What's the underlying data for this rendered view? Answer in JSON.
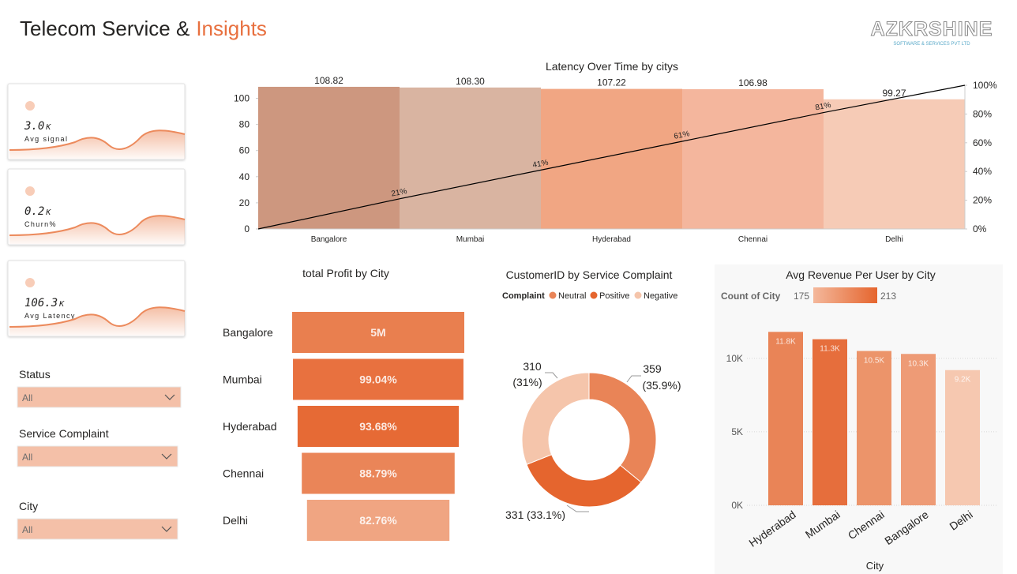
{
  "header": {
    "title": "Telecom Service &",
    "title_accent": "Insights",
    "logo": "AZKRSHINE",
    "logo_tagline": "SOFTWARE & SERVICES PVT LTD"
  },
  "kpis": [
    {
      "value": "3.0",
      "unit": "K",
      "label": "Avg signal"
    },
    {
      "value": "0.2",
      "unit": "K",
      "label": "Churn%"
    },
    {
      "value": "106.3",
      "unit": "K",
      "label": "Avg Latency"
    }
  ],
  "filters": [
    {
      "label": "Status",
      "value": "All"
    },
    {
      "label": "Service Complaint",
      "value": "All"
    },
    {
      "label": "City",
      "value": "All"
    }
  ],
  "chart_data": [
    {
      "type": "pareto",
      "title": "Latency Over Time by citys",
      "categories": [
        "Bangalore",
        "Mumbai",
        "Hyderabad",
        "Chennai",
        "Delhi"
      ],
      "values": [
        108.82,
        108.3,
        107.22,
        106.98,
        99.27
      ],
      "value_labels": [
        "108.82",
        "108.30",
        "107.22",
        "106.98",
        "99.27"
      ],
      "colors": [
        "#cd977f",
        "#d9b4a1",
        "#f1a683",
        "#f4b69d",
        "#f6cbb6"
      ],
      "ylim": [
        0,
        110
      ],
      "yticks": [
        0,
        20,
        40,
        60,
        80,
        100
      ],
      "line": {
        "values": [
          21,
          41,
          61,
          81,
          100
        ],
        "value_labels": [
          "21%",
          "41%",
          "61%",
          "81%",
          null
        ],
        "color": "#000000",
        "axis": "y2"
      },
      "y2lim": [
        0,
        100
      ],
      "y2ticks": [
        {
          "value": 0,
          "label": "0%"
        },
        {
          "value": 20,
          "label": "20%"
        },
        {
          "value": 40,
          "label": "40%"
        },
        {
          "value": 60,
          "label": "60%"
        },
        {
          "value": 80,
          "label": "80%"
        },
        {
          "value": 100,
          "label": "100%"
        }
      ]
    },
    {
      "type": "funnel",
      "title": "total Profit by City",
      "categories": [
        "Bangalore",
        "Mumbai",
        "Hyderabad",
        "Chennai",
        "Delhi"
      ],
      "top_value": 5000000,
      "top_value_label": "5M",
      "percent_of_top": [
        99.04,
        93.68,
        88.79,
        82.76
      ],
      "percent_labels": [
        "99.04%",
        "93.68%",
        "88.79%",
        "82.76%"
      ],
      "colors": [
        "#e97f4f",
        "#e8713f",
        "#e66a35",
        "#ea8558",
        "#f0a582"
      ]
    },
    {
      "type": "donut",
      "title": "CustomerID by Service Complaint",
      "legend_title": "Complaint",
      "legend": "top-left",
      "categories": [
        "Neutral",
        "Positive",
        "Negative"
      ],
      "values": [
        359,
        331,
        310
      ],
      "percents": [
        35.9,
        33.1,
        31
      ],
      "percent_labels": [
        "(35.9%)",
        "(33.1%)",
        "(31%)"
      ],
      "colors": [
        "#e98457",
        "#e5652e",
        "#f5c5ab"
      ]
    },
    {
      "type": "bar",
      "title": "Avg Revenue Per User by City",
      "x_label": "City",
      "categories": [
        "Hyderabad",
        "Mumbai",
        "Chennai",
        "Bangalore",
        "Delhi"
      ],
      "values": [
        11800,
        11300,
        10500,
        10300,
        9200
      ],
      "value_labels": [
        "11.8K",
        "11.3K",
        "10.5K",
        "10.3K",
        "9.2K"
      ],
      "colors": [
        "#e98457",
        "#e66e3c",
        "#ec946a",
        "#ee9b76",
        "#f6c8b0"
      ],
      "ylim": [
        0,
        13000
      ],
      "yticks": [
        {
          "value": 0,
          "label": "0K"
        },
        {
          "value": 5000,
          "label": "5K"
        },
        {
          "value": 10000,
          "label": "10K"
        }
      ],
      "grid": true,
      "color_scale": {
        "title": "Count of City",
        "min": 175,
        "max": 213,
        "colors": [
          "#f4b89b",
          "#e5652e"
        ]
      }
    }
  ]
}
